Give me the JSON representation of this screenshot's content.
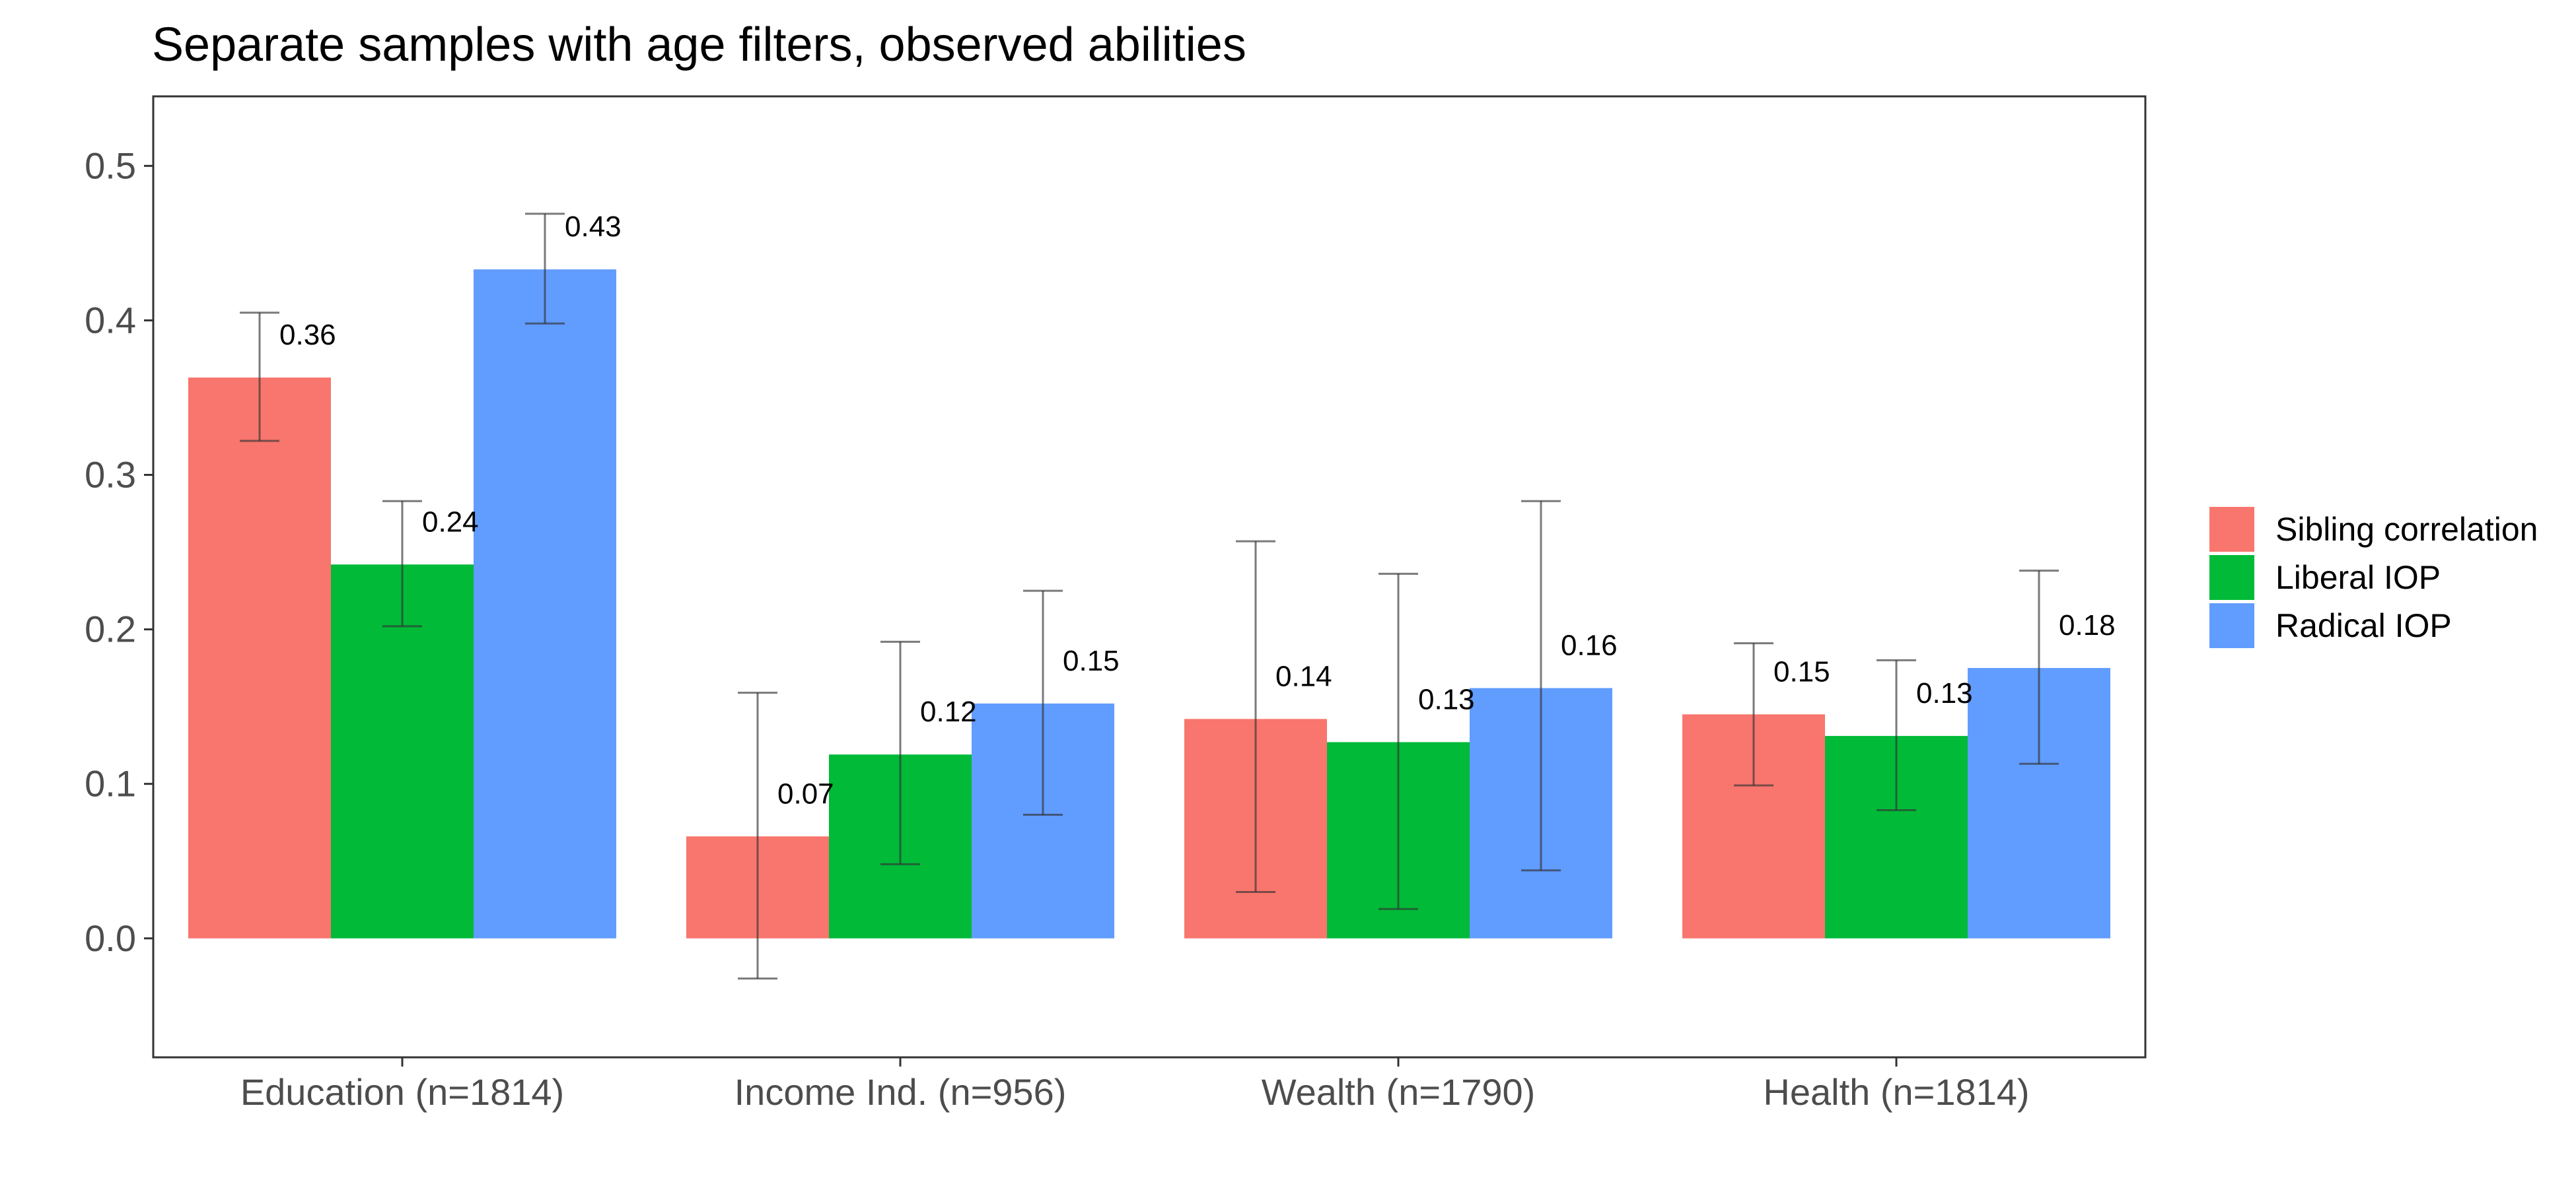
{
  "chart_data": {
    "type": "bar",
    "title": "Separate samples with age filters, observed abilities",
    "xlabel": "",
    "ylabel": "",
    "categories": [
      "Education (n=1814)",
      "Income Ind. (n=956)",
      "Wealth (n=1790)",
      "Health (n=1814)"
    ],
    "ylim": [
      -0.077,
      0.545
    ],
    "yticks": [
      0.0,
      0.1,
      0.2,
      0.3,
      0.4,
      0.5
    ],
    "ytick_labels": [
      "0.0",
      "0.1",
      "0.2",
      "0.3",
      "0.4",
      "0.5"
    ],
    "grid": false,
    "legend_position": "right",
    "series": [
      {
        "name": "Sibling correlation",
        "color": "#F8766D",
        "values": [
          0.363,
          0.066,
          0.142,
          0.145
        ],
        "error_low": [
          0.322,
          -0.026,
          0.03,
          0.099
        ],
        "error_high": [
          0.405,
          0.159,
          0.257,
          0.191
        ],
        "labels": [
          "0.36",
          "0.07",
          "0.14",
          "0.15"
        ]
      },
      {
        "name": "Liberal IOP",
        "color": "#00BA38",
        "values": [
          0.242,
          0.119,
          0.127,
          0.131
        ],
        "error_low": [
          0.202,
          0.048,
          0.019,
          0.083
        ],
        "error_high": [
          0.283,
          0.192,
          0.236,
          0.18
        ],
        "labels": [
          "0.24",
          "0.12",
          "0.13",
          "0.13"
        ]
      },
      {
        "name": "Radical IOP",
        "color": "#619CFF",
        "values": [
          0.433,
          0.152,
          0.162,
          0.175
        ],
        "error_low": [
          0.398,
          0.08,
          0.044,
          0.113
        ],
        "error_high": [
          0.469,
          0.225,
          0.283,
          0.238
        ],
        "labels": [
          "0.43",
          "0.15",
          "0.16",
          "0.18"
        ]
      }
    ]
  }
}
